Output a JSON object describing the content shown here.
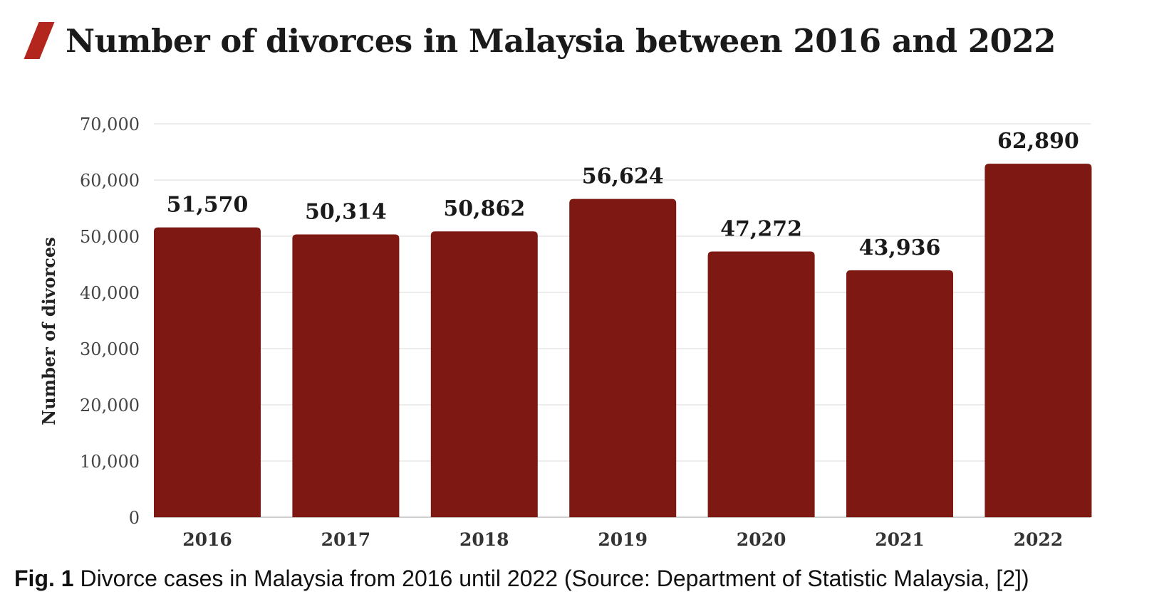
{
  "chart_data": {
    "type": "bar",
    "title": "Number of divorces in Malaysia between 2016 and 2022",
    "ylabel": "Number of divorces",
    "xlabel": "",
    "categories": [
      "2016",
      "2017",
      "2018",
      "2019",
      "2020",
      "2021",
      "2022"
    ],
    "values": [
      51570,
      50314,
      50862,
      56624,
      47272,
      43936,
      62890
    ],
    "data_labels": [
      "51,570",
      "50,314",
      "50,862",
      "56,624",
      "47,272",
      "43,936",
      "62,890"
    ],
    "ylim": [
      0,
      70000
    ],
    "yticks": [
      0,
      10000,
      20000,
      30000,
      40000,
      50000,
      60000,
      70000
    ],
    "ytick_labels": [
      "0",
      "10,000",
      "20,000",
      "30,000",
      "40,000",
      "50,000",
      "60,000",
      "70,000"
    ],
    "grid": true,
    "bar_color": "#7d1812",
    "accent_color": "#b3261e"
  },
  "caption": {
    "label": "Fig. 1",
    "text": " Divorce cases in Malaysia from 2016 until 2022 (Source: Department of Statistic Malaysia, [2])"
  }
}
